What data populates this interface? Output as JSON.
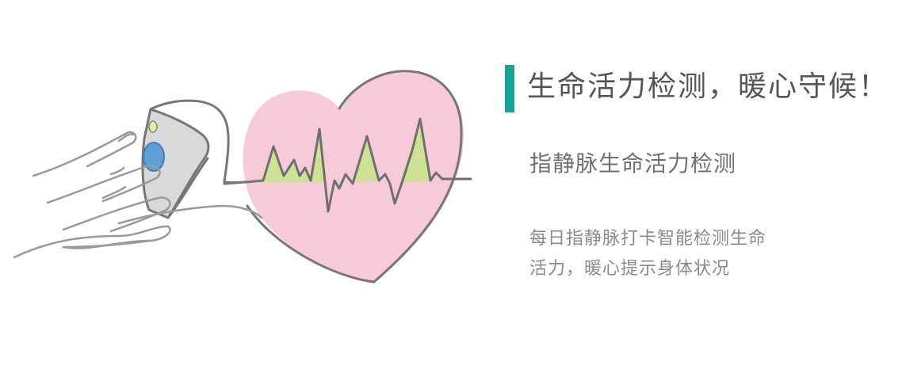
{
  "heading": {
    "title": "生命活力检测，暖心守候！",
    "subtitle": "指静脉生命活力检测",
    "description_lines": [
      "每日指静脉打卡智能检测生命",
      "活力，暖心提示身体状况"
    ]
  },
  "illustration": {
    "icons": [
      "hand-with-finger-clip-icon",
      "heart-icon",
      "heartbeat-line-icon"
    ]
  },
  "colors": {
    "accent": "#16a596",
    "heart_fill": "#f6cbd7",
    "pulse_fill": "#cde293",
    "line": "#777777",
    "vein_blue": "#5d9fd6"
  }
}
